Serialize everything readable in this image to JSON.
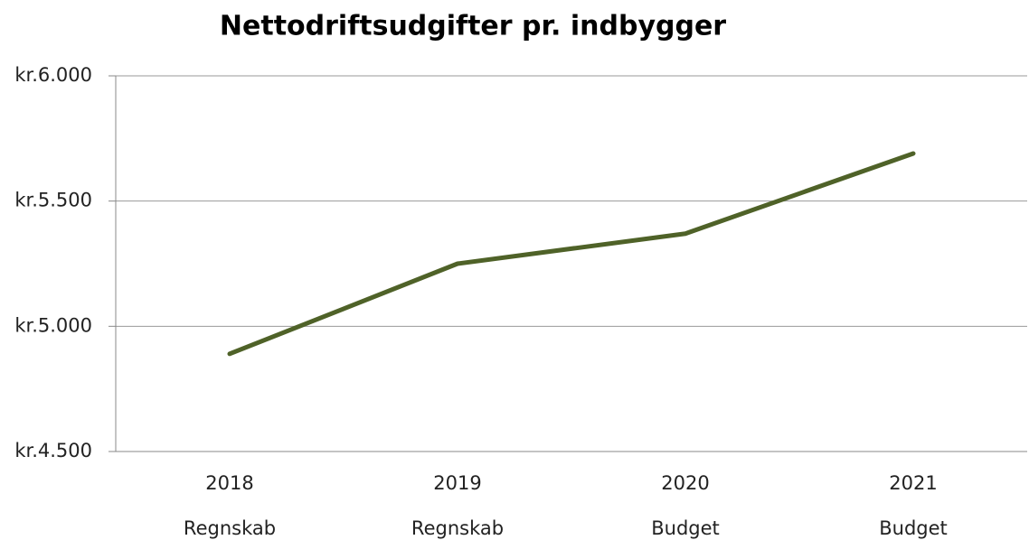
{
  "chart_data": {
    "type": "line",
    "title": "Nettodriftsudgifter pr. indbygger",
    "categories": [
      [
        "2018",
        "Regnskab"
      ],
      [
        "2019",
        "Regnskab"
      ],
      [
        "2020",
        "Budget"
      ],
      [
        "2021",
        "Budget"
      ]
    ],
    "values": [
      4890,
      5250,
      5370,
      5690
    ],
    "color": "#4f6228",
    "ylim": [
      4500,
      6000
    ],
    "yticks": [
      {
        "value": 4500,
        "label": "kr.4.500"
      },
      {
        "value": 5000,
        "label": "kr.5.000"
      },
      {
        "value": 5500,
        "label": "kr.5.500"
      },
      {
        "value": 6000,
        "label": "kr.6.000"
      }
    ],
    "grid": true
  }
}
